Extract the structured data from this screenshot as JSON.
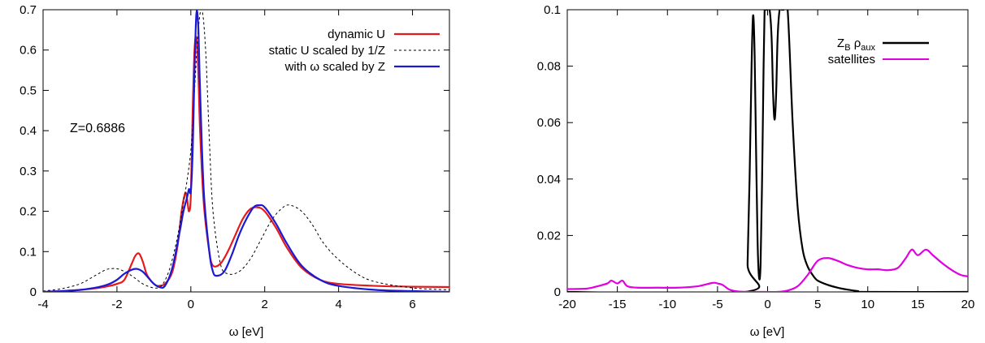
{
  "chart_data": [
    {
      "type": "line",
      "xlabel": "ω [eV]",
      "ylabel": "",
      "xlim": [
        -4,
        7
      ],
      "ylim": [
        0,
        0.7
      ],
      "xticks": [
        "-4",
        "-2",
        "0",
        "2",
        "4",
        "6"
      ],
      "yticks": [
        "0",
        "0.1",
        "0.2",
        "0.3",
        "0.4",
        "0.5",
        "0.6",
        "0.7"
      ],
      "legend_position": "top-right",
      "annotations": [
        {
          "text": "Z=0.6886",
          "x": -3.3,
          "y": 0.43
        }
      ],
      "series": [
        {
          "name": "dynamic U",
          "color": "#e41a1c",
          "style": "solid",
          "x": [
            -4,
            -3.5,
            -3,
            -2.5,
            -2.2,
            -2,
            -1.8,
            -1.6,
            -1.5,
            -1.4,
            -1.3,
            -1.2,
            -1.1,
            -1.0,
            -0.9,
            -0.7,
            -0.5,
            -0.35,
            -0.25,
            -0.15,
            -0.1,
            -0.05,
            0.0,
            0.05,
            0.1,
            0.15,
            0.2,
            0.25,
            0.35,
            0.5,
            0.6,
            0.8,
            1.0,
            1.2,
            1.4,
            1.6,
            1.8,
            2.0,
            2.3,
            2.6,
            3.0,
            3.5,
            4,
            5,
            6,
            7
          ],
          "y": [
            0.0,
            0.002,
            0.005,
            0.01,
            0.015,
            0.02,
            0.03,
            0.07,
            0.09,
            0.095,
            0.075,
            0.045,
            0.03,
            0.02,
            0.015,
            0.02,
            0.05,
            0.12,
            0.2,
            0.245,
            0.23,
            0.2,
            0.24,
            0.45,
            0.6,
            0.63,
            0.55,
            0.4,
            0.22,
            0.1,
            0.065,
            0.07,
            0.1,
            0.14,
            0.18,
            0.205,
            0.21,
            0.2,
            0.16,
            0.11,
            0.06,
            0.03,
            0.02,
            0.015,
            0.013,
            0.012
          ]
        },
        {
          "name": "static U scaled by 1/Z",
          "color": "#000000",
          "style": "dotted",
          "x": [
            -4,
            -3.5,
            -3,
            -2.6,
            -2.3,
            -2.1,
            -1.9,
            -1.6,
            -1.3,
            -1.0,
            -0.8,
            -0.6,
            -0.4,
            -0.2,
            0.0,
            0.1,
            0.2,
            0.3,
            0.4,
            0.5,
            0.6,
            0.8,
            1.0,
            1.3,
            1.6,
            1.9,
            2.2,
            2.5,
            2.7,
            3.0,
            3.3,
            3.6,
            4.0,
            4.5,
            5,
            6,
            7
          ],
          "y": [
            0.002,
            0.008,
            0.02,
            0.04,
            0.055,
            0.058,
            0.055,
            0.04,
            0.02,
            0.01,
            0.015,
            0.05,
            0.12,
            0.22,
            0.35,
            0.5,
            0.65,
            0.7,
            0.6,
            0.38,
            0.2,
            0.07,
            0.045,
            0.05,
            0.08,
            0.13,
            0.18,
            0.21,
            0.215,
            0.2,
            0.165,
            0.12,
            0.08,
            0.045,
            0.025,
            0.01,
            0.005
          ]
        },
        {
          "name": "with ω scaled by Z",
          "color": "#1a1ad6",
          "style": "solid",
          "x": [
            -4,
            -3.5,
            -3,
            -2.5,
            -2.2,
            -2.0,
            -1.8,
            -1.6,
            -1.45,
            -1.3,
            -1.15,
            -1.0,
            -0.85,
            -0.7,
            -0.5,
            -0.3,
            -0.2,
            -0.1,
            -0.05,
            0.0,
            0.05,
            0.1,
            0.15,
            0.2,
            0.25,
            0.35,
            0.5,
            0.6,
            0.7,
            0.9,
            1.1,
            1.3,
            1.5,
            1.7,
            1.85,
            2.0,
            2.3,
            2.6,
            3.0,
            3.5,
            4,
            5,
            6,
            7
          ],
          "y": [
            0.0,
            0.002,
            0.005,
            0.012,
            0.02,
            0.03,
            0.045,
            0.055,
            0.057,
            0.05,
            0.035,
            0.02,
            0.012,
            0.015,
            0.06,
            0.15,
            0.2,
            0.235,
            0.255,
            0.25,
            0.35,
            0.55,
            0.69,
            0.66,
            0.5,
            0.25,
            0.1,
            0.05,
            0.04,
            0.05,
            0.09,
            0.14,
            0.18,
            0.21,
            0.215,
            0.21,
            0.17,
            0.12,
            0.065,
            0.03,
            0.015,
            0.005,
            0.002,
            0.0
          ]
        }
      ]
    },
    {
      "type": "line",
      "xlabel": "ω [eV]",
      "ylabel": "",
      "xlim": [
        -20,
        20
      ],
      "ylim": [
        0,
        0.1
      ],
      "xticks": [
        "-20",
        "-15",
        "-10",
        "-5",
        "0",
        "5",
        "10",
        "15",
        "20"
      ],
      "yticks": [
        "0",
        "0.02",
        "0.04",
        "0.06",
        "0.08",
        "0.1"
      ],
      "legend_position": "top-right",
      "series": [
        {
          "name_parts": {
            "main": "Z",
            "sub1": "B",
            "mid": " ρ",
            "sub2": "aux"
          },
          "color": "#000000",
          "style": "solid",
          "x": [
            -20,
            -2.2,
            -2.0,
            -1.8,
            -1.6,
            -1.45,
            -1.3,
            -1.15,
            -1.0,
            -0.85,
            -0.7,
            -0.55,
            -0.4,
            -0.3,
            -0.2,
            0.0,
            0.2,
            0.4,
            0.55,
            0.7,
            0.85,
            1.0,
            1.2,
            1.4,
            1.6,
            2.0,
            2.5,
            3.0,
            3.5,
            4.0,
            4.5,
            5.0,
            6.0,
            7.0,
            8.0,
            9.0,
            10.0,
            20
          ],
          "y": [
            0,
            0,
            0.01,
            0.04,
            0.08,
            0.098,
            0.085,
            0.05,
            0.018,
            0.005,
            0.01,
            0.04,
            0.08,
            0.1,
            0.1,
            0.1,
            0.1,
            0.09,
            0.07,
            0.061,
            0.07,
            0.09,
            0.1,
            0.1,
            0.1,
            0.1,
            0.06,
            0.03,
            0.015,
            0.009,
            0.006,
            0.004,
            0.0025,
            0.0015,
            0.0008,
            0.0003,
            0.0,
            0.0
          ]
        },
        {
          "name": "satellites",
          "color": "#e000e0",
          "style": "solid",
          "x": [
            -20,
            -18,
            -17,
            -16,
            -15.6,
            -15,
            -14.5,
            -14,
            -13,
            -11,
            -9,
            -7,
            -5.5,
            -5,
            -4.5,
            -3.8,
            -3,
            -2,
            -1,
            0,
            1,
            2,
            3,
            4,
            5,
            6,
            7,
            8,
            9,
            10,
            11,
            12,
            13,
            13.8,
            14.4,
            15,
            15.8,
            16.5,
            17.5,
            18.5,
            19.3,
            20
          ],
          "y": [
            0.001,
            0.0012,
            0.002,
            0.003,
            0.004,
            0.003,
            0.004,
            0.002,
            0.0015,
            0.0015,
            0.0015,
            0.002,
            0.0032,
            0.003,
            0.0025,
            0.0008,
            0.0002,
            0.0,
            0.0,
            0.0,
            0.0,
            0.0005,
            0.002,
            0.006,
            0.011,
            0.012,
            0.011,
            0.0095,
            0.0085,
            0.008,
            0.008,
            0.0077,
            0.0085,
            0.012,
            0.015,
            0.013,
            0.015,
            0.013,
            0.01,
            0.0075,
            0.006,
            0.0055
          ]
        }
      ]
    }
  ]
}
